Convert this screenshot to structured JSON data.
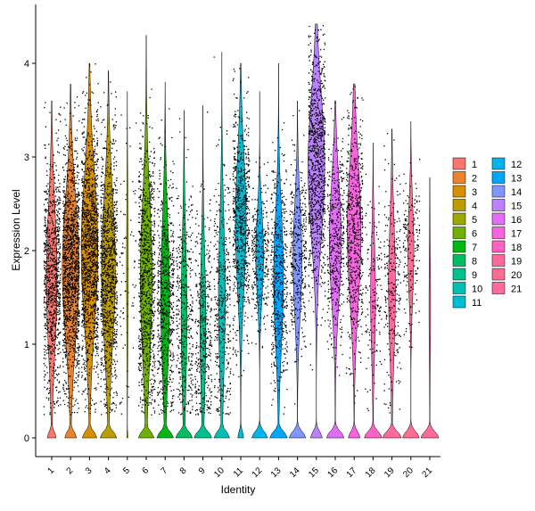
{
  "chart_data": {
    "type": "violin",
    "xlabel": "Identity",
    "ylabel": "Expression Level",
    "categories": [
      "1",
      "2",
      "3",
      "4",
      "5",
      "6",
      "7",
      "8",
      "9",
      "10",
      "11",
      "12",
      "13",
      "14",
      "15",
      "16",
      "17",
      "18",
      "19",
      "20",
      "21"
    ],
    "colors": [
      "#F8766D",
      "#E9842C",
      "#D69100",
      "#BC9D00",
      "#9CA700",
      "#6FB000",
      "#00B813",
      "#00BD61",
      "#00C08E",
      "#00C0B4",
      "#00BDD4",
      "#00B5EE",
      "#00A7FF",
      "#7F96FF",
      "#BC81FF",
      "#E26EF7",
      "#F863DF",
      "#FF62BF",
      "#FF6A9A",
      "#FF6C91",
      "#FF6A98"
    ],
    "ylim": [
      -0.2,
      4.45
    ],
    "yticks": [
      0,
      1,
      2,
      3,
      4
    ],
    "legend_position": "right",
    "legend_columns": [
      [
        "1",
        "2",
        "3",
        "4",
        "5",
        "6",
        "7",
        "8",
        "9",
        "10",
        "11"
      ],
      [
        "12",
        "13",
        "14",
        "15",
        "16",
        "17",
        "18",
        "19",
        "20",
        "21"
      ]
    ],
    "series": [
      {
        "name": "1",
        "max": 3.6,
        "zero_width": 0.45,
        "expr_width": 0.55,
        "expr_center": 1.7,
        "expr_spread": 0.75,
        "points": 900
      },
      {
        "name": "2",
        "max": 3.78,
        "zero_width": 0.6,
        "expr_width": 0.85,
        "expr_center": 1.8,
        "expr_spread": 0.75,
        "points": 1300
      },
      {
        "name": "3",
        "max": 4.0,
        "zero_width": 0.75,
        "expr_width": 0.85,
        "expr_center": 2.0,
        "expr_spread": 0.8,
        "points": 1300
      },
      {
        "name": "4",
        "max": 3.92,
        "zero_width": 0.85,
        "expr_width": 0.7,
        "expr_center": 1.8,
        "expr_spread": 0.8,
        "points": 1000
      },
      {
        "name": "5",
        "max": 3.7,
        "zero_width": 0.05,
        "expr_width": 0.08,
        "expr_center": 1.8,
        "expr_spread": 0.8,
        "points": 80
      },
      {
        "name": "6",
        "max": 4.3,
        "zero_width": 0.8,
        "expr_width": 0.6,
        "expr_center": 1.7,
        "expr_spread": 0.85,
        "points": 850
      },
      {
        "name": "7",
        "max": 3.8,
        "zero_width": 0.85,
        "expr_width": 0.45,
        "expr_center": 1.5,
        "expr_spread": 0.8,
        "points": 650
      },
      {
        "name": "8",
        "max": 3.5,
        "zero_width": 0.85,
        "expr_width": 0.3,
        "expr_center": 1.3,
        "expr_spread": 0.8,
        "points": 380
      },
      {
        "name": "9",
        "max": 3.55,
        "zero_width": 0.9,
        "expr_width": 0.3,
        "expr_center": 1.2,
        "expr_spread": 0.75,
        "points": 380
      },
      {
        "name": "10",
        "max": 4.12,
        "zero_width": 0.8,
        "expr_width": 0.35,
        "expr_center": 1.5,
        "expr_spread": 0.8,
        "points": 380
      },
      {
        "name": "11",
        "max": 4.0,
        "zero_width": 0.3,
        "expr_width": 0.55,
        "expr_center": 2.3,
        "expr_spread": 0.7,
        "points": 700
      },
      {
        "name": "12",
        "max": 3.7,
        "zero_width": 0.8,
        "expr_width": 0.4,
        "expr_center": 1.95,
        "expr_spread": 0.45,
        "points": 300
      },
      {
        "name": "13",
        "max": 4.0,
        "zero_width": 0.9,
        "expr_width": 0.5,
        "expr_center": 1.7,
        "expr_spread": 0.7,
        "points": 500
      },
      {
        "name": "14",
        "max": 3.6,
        "zero_width": 0.85,
        "expr_width": 0.45,
        "expr_center": 1.9,
        "expr_spread": 0.6,
        "points": 380
      },
      {
        "name": "15",
        "max": 4.42,
        "zero_width": 0.6,
        "expr_width": 0.85,
        "expr_center": 2.9,
        "expr_spread": 0.75,
        "points": 900
      },
      {
        "name": "16",
        "max": 3.6,
        "zero_width": 0.9,
        "expr_width": 0.6,
        "expr_center": 2.1,
        "expr_spread": 0.65,
        "points": 450
      },
      {
        "name": "17",
        "max": 3.78,
        "zero_width": 0.6,
        "expr_width": 0.7,
        "expr_center": 2.2,
        "expr_spread": 0.75,
        "points": 600
      },
      {
        "name": "18",
        "max": 3.15,
        "zero_width": 0.9,
        "expr_width": 0.25,
        "expr_center": 1.5,
        "expr_spread": 0.6,
        "points": 150
      },
      {
        "name": "19",
        "max": 3.3,
        "zero_width": 0.95,
        "expr_width": 0.35,
        "expr_center": 1.6,
        "expr_spread": 0.7,
        "points": 250
      },
      {
        "name": "20",
        "max": 3.38,
        "zero_width": 0.85,
        "expr_width": 0.3,
        "expr_center": 2.0,
        "expr_spread": 0.5,
        "points": 180
      },
      {
        "name": "21",
        "max": 2.78,
        "zero_width": 0.9,
        "expr_width": 0.08,
        "expr_center": 1.4,
        "expr_spread": 0.6,
        "points": 0
      }
    ]
  }
}
